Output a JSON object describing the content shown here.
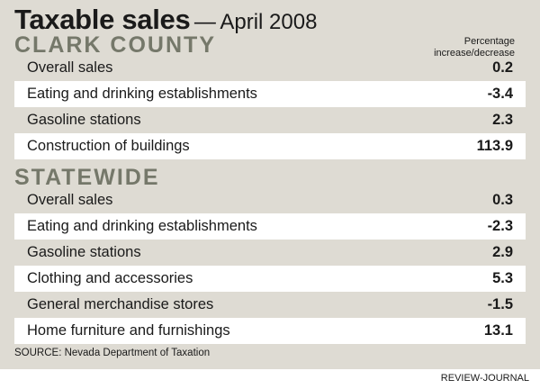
{
  "title": "Taxable sales",
  "title_dash": "—",
  "subtitle": "April 2008",
  "column_header_line1": "Percentage",
  "column_header_line2": "increase/decrease",
  "source": "SOURCE: Nevada Department of Taxation",
  "credit": "REVIEW-JOURNAL",
  "colors": {
    "panel_background": "#dedbd3",
    "alt_row_background": "#ffffff",
    "section_heading": "#75786a",
    "text": "#1a1a1a"
  },
  "chart_data": {
    "type": "table",
    "title": "Taxable sales — April 2008",
    "value_header": "Percentage increase/decrease",
    "sections": [
      {
        "name": "CLARK COUNTY",
        "rows": [
          {
            "label": "Overall sales",
            "value": "0.2"
          },
          {
            "label": "Eating and drinking establishments",
            "value": "-3.4"
          },
          {
            "label": "Gasoline stations",
            "value": "2.3"
          },
          {
            "label": "Construction of buildings",
            "value": "113.9"
          }
        ]
      },
      {
        "name": "STATEWIDE",
        "rows": [
          {
            "label": "Overall sales",
            "value": "0.3"
          },
          {
            "label": "Eating and drinking establishments",
            "value": "-2.3"
          },
          {
            "label": "Gasoline stations",
            "value": "2.9"
          },
          {
            "label": "Clothing and accessories",
            "value": "5.3"
          },
          {
            "label": "General merchandise stores",
            "value": "-1.5"
          },
          {
            "label": "Home furniture and furnishings",
            "value": "13.1"
          }
        ]
      }
    ]
  }
}
